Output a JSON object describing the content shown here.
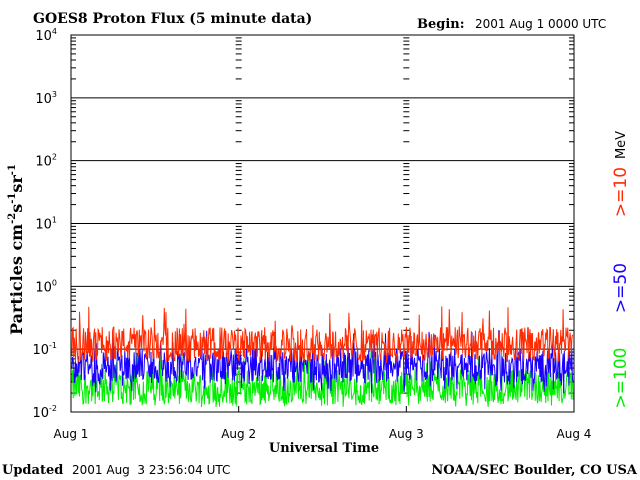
{
  "chart_data": {
    "type": "line",
    "title": "GOES8 Proton Flux (5 minute data)",
    "begin_label": "Begin:",
    "begin_value": "2001 Aug 1 0000 UTC",
    "ylabel_main": "Particles cm",
    "ylabel_sup1": "-2",
    "ylabel_s": "s",
    "ylabel_sup2": "-1",
    "ylabel_sr": "sr",
    "ylabel_sup3": "-1",
    "xlabel": "Universal Time",
    "y_scale": "log",
    "ylim": [
      0.01,
      10000
    ],
    "y_ticks": [
      {
        "base": "10",
        "exp": "-2",
        "value": 0.01
      },
      {
        "base": "10",
        "exp": "-1",
        "value": 0.1
      },
      {
        "base": "10",
        "exp": "0",
        "value": 1
      },
      {
        "base": "10",
        "exp": "1",
        "value": 10
      },
      {
        "base": "10",
        "exp": "2",
        "value": 100
      },
      {
        "base": "10",
        "exp": "3",
        "value": 1000
      },
      {
        "base": "10",
        "exp": "4",
        "value": 10000
      }
    ],
    "x_range": [
      "2001-08-01 00:00",
      "2001-08-04 00:00"
    ],
    "x_ticks": [
      "Aug 1",
      "Aug 2",
      "Aug 3",
      "Aug 4"
    ],
    "grid": true,
    "legend_placement": "right",
    "legend_unit": "MeV",
    "series": [
      {
        "name": ">=10",
        "color": "#ff2a00",
        "typical": 0.12,
        "range": [
          0.06,
          0.5
        ]
      },
      {
        "name": ">=50",
        "color": "#1a00ff",
        "typical": 0.055,
        "range": [
          0.02,
          0.2
        ]
      },
      {
        "name": ">=100",
        "color": "#00ee00",
        "typical": 0.025,
        "range": [
          0.012,
          0.1
        ]
      }
    ],
    "footer_left_label": "Updated",
    "footer_left_value": "2001 Aug  3 23:56:04 UTC",
    "footer_right": "NOAA/SEC Boulder, CO USA"
  }
}
